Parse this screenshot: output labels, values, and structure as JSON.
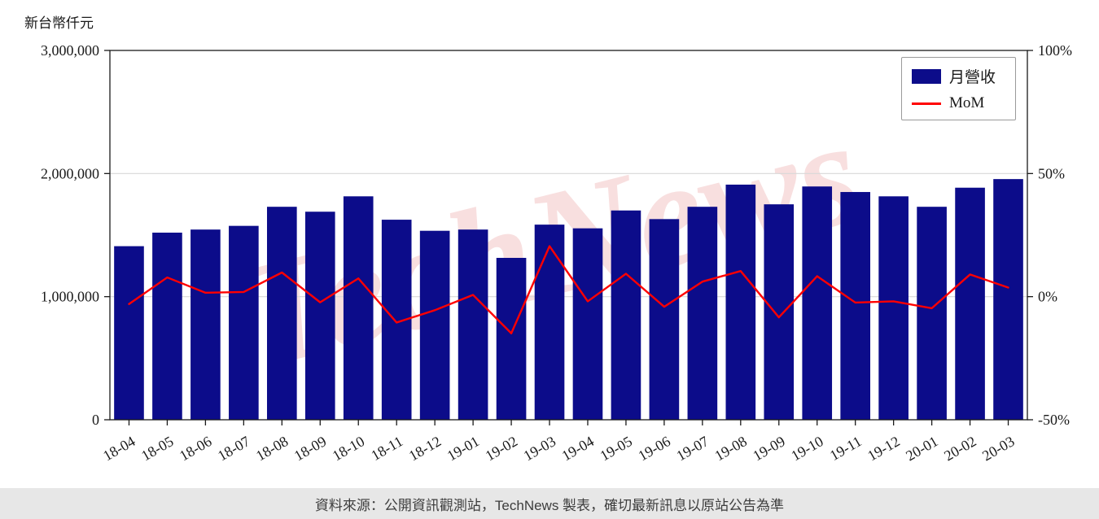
{
  "title": "新台幣仟元",
  "watermark": "TechNews",
  "footer": "資料來源：公開資訊觀測站，TechNews 製表，確切最新訊息以原站公告為準",
  "legend": {
    "bar_label": "月營收",
    "line_label": "MoM"
  },
  "colors": {
    "bar": "#0c0c8a",
    "line": "#ff0000",
    "grid": "#d8d8d8",
    "axis": "#1a1a1a",
    "watermark": "rgba(222,110,110,0.22)",
    "footer_bg": "#e7e7e7"
  },
  "chart_data": {
    "type": "bar",
    "title": "",
    "xlabel": "",
    "ylabel": "新台幣仟元",
    "grid": true,
    "legend_position": "top-right",
    "categories": [
      "18-04",
      "18-05",
      "18-06",
      "18-07",
      "18-08",
      "18-09",
      "18-10",
      "18-11",
      "18-12",
      "19-01",
      "19-02",
      "19-03",
      "19-04",
      "19-05",
      "19-06",
      "19-07",
      "19-08",
      "19-09",
      "19-10",
      "19-11",
      "19-12",
      "20-01",
      "20-02",
      "20-03"
    ],
    "series": [
      {
        "name": "月營收",
        "type": "bar",
        "axis": "left",
        "values": [
          1410000,
          1520000,
          1545000,
          1575000,
          1730000,
          1690000,
          1815000,
          1625000,
          1535000,
          1545000,
          1315000,
          1585000,
          1555000,
          1700000,
          1630000,
          1730000,
          1910000,
          1750000,
          1895000,
          1850000,
          1815000,
          1730000,
          1885000,
          1955000
        ]
      },
      {
        "name": "MoM",
        "type": "line",
        "axis": "right",
        "values": [
          -3.0,
          7.8,
          1.6,
          1.9,
          9.8,
          -2.3,
          7.4,
          -10.5,
          -5.5,
          0.7,
          -14.9,
          20.5,
          -1.9,
          9.3,
          -4.1,
          6.1,
          10.4,
          -8.4,
          8.3,
          -2.4,
          -1.9,
          -4.7,
          9.0,
          3.7
        ]
      }
    ],
    "left_axis": {
      "min": 0,
      "max": 3000000,
      "ticks": [
        {
          "label": "3,000,000",
          "value": 3000000
        },
        {
          "label": "2,000,000",
          "value": 2000000
        },
        {
          "label": "1,000,000",
          "value": 1000000
        },
        {
          "label": "0",
          "value": 0
        }
      ]
    },
    "right_axis": {
      "min": -50,
      "max": 100,
      "ticks": [
        {
          "label": "100%",
          "value": 100
        },
        {
          "label": "50%",
          "value": 50
        },
        {
          "label": "0%",
          "value": 0
        },
        {
          "label": "-50%",
          "value": -50
        }
      ]
    }
  }
}
